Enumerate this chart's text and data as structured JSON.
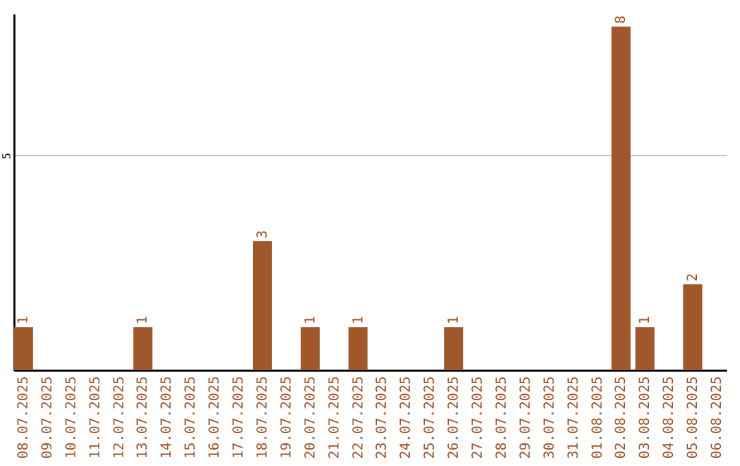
{
  "chart_data": {
    "type": "bar",
    "categories": [
      "08.07.2025",
      "09.07.2025",
      "10.07.2025",
      "11.07.2025",
      "12.07.2025",
      "13.07.2025",
      "14.07.2025",
      "15.07.2025",
      "16.07.2025",
      "17.07.2025",
      "18.07.2025",
      "19.07.2025",
      "20.07.2025",
      "21.07.2025",
      "22.07.2025",
      "23.07.2025",
      "24.07.2025",
      "25.07.2025",
      "26.07.2025",
      "27.07.2025",
      "28.07.2025",
      "29.07.2025",
      "30.07.2025",
      "31.07.2025",
      "01.08.2025",
      "02.08.2025",
      "03.08.2025",
      "04.08.2025",
      "05.08.2025",
      "06.08.2025"
    ],
    "values": [
      1,
      0,
      0,
      0,
      0,
      1,
      0,
      0,
      0,
      0,
      3,
      0,
      1,
      0,
      1,
      0,
      0,
      0,
      1,
      0,
      0,
      0,
      0,
      0,
      0,
      8,
      1,
      0,
      2,
      0
    ],
    "value_labels": [
      "1",
      null,
      null,
      null,
      null,
      "1",
      null,
      null,
      null,
      null,
      "3",
      null,
      "1",
      null,
      "1",
      null,
      null,
      null,
      "1",
      null,
      null,
      null,
      null,
      null,
      null,
      "8",
      "1",
      null,
      "2",
      null
    ],
    "color": "#a0572a",
    "ylim": [
      0,
      8.3
    ],
    "yticks": [
      5
    ],
    "grid": "y"
  }
}
